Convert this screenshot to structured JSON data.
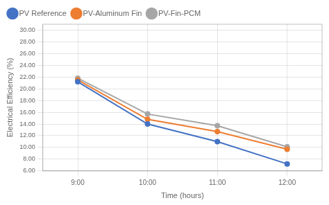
{
  "chart_data": {
    "type": "line",
    "categories": [
      "9:00",
      "10:00",
      "11:00",
      "12:00"
    ],
    "series": [
      {
        "name": "PV Reference",
        "color": "#4472C4",
        "marker": "circle",
        "values": [
          21.2,
          14.0,
          11.0,
          7.2
        ]
      },
      {
        "name": "PV-Aluminum Fin",
        "color": "#ED7D31",
        "marker": "circle",
        "values": [
          21.5,
          14.8,
          12.7,
          9.7
        ]
      },
      {
        "name": "PV-Fin-PCM",
        "color": "#A6A6A6",
        "marker": "circle",
        "values": [
          21.8,
          15.7,
          13.7,
          10.1
        ]
      }
    ],
    "x_label": "Time (hours)",
    "y_label": "Electrical Efficiency (%)",
    "ylim": [
      6.0,
      31.0
    ],
    "yticks": [
      {
        "value": 6,
        "label": "6.00"
      },
      {
        "value": 8,
        "label": "8.00"
      },
      {
        "value": 10,
        "label": "10.00"
      },
      {
        "value": 12,
        "label": "12.00"
      },
      {
        "value": 14,
        "label": "14.00"
      },
      {
        "value": 16,
        "label": "16.00"
      },
      {
        "value": 18,
        "label": "18.00"
      },
      {
        "value": 20,
        "label": "20.00"
      },
      {
        "value": 22,
        "label": "22.00"
      },
      {
        "value": 24,
        "label": "24.00"
      },
      {
        "value": 26,
        "label": "26.00"
      },
      {
        "value": 28,
        "label": "28.00"
      },
      {
        "value": 30,
        "label": "30.00"
      }
    ],
    "grid": true,
    "legend": "upper left"
  }
}
